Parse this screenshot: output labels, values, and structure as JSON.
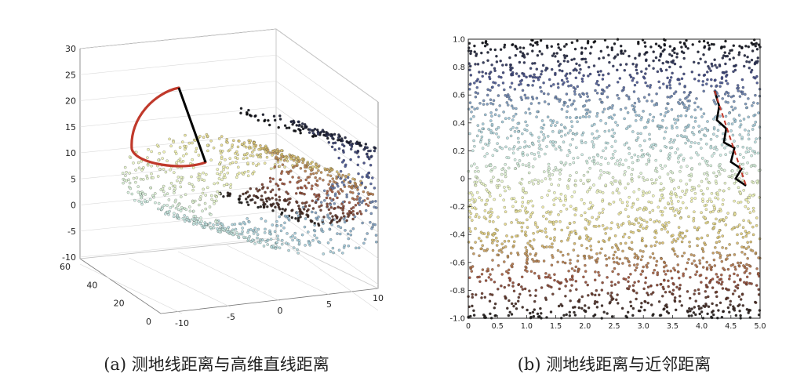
{
  "chart_data": [
    {
      "type": "scatter",
      "subtype": "3d-swiss-roll",
      "caption": "(a) 测地线距离与高维直线距离",
      "z_ticks": [
        "30",
        "25",
        "20",
        "15",
        "10",
        "5",
        "0",
        "-5",
        "-10"
      ],
      "y_ticks": [
        "60",
        "40",
        "20",
        "0"
      ],
      "x_ticks": [
        "-10",
        "-5",
        "0",
        "5",
        "10"
      ],
      "z_range": [
        -10,
        30
      ],
      "y_range": [
        0,
        60
      ],
      "x_range": [
        -10,
        10
      ],
      "colormap": [
        "#000000",
        "#3f4a8a",
        "#9cc6d8",
        "#d2f2e6",
        "#f4f7b3",
        "#dcc46f",
        "#9a4a33",
        "#111111"
      ],
      "curves": [
        {
          "name": "geodesic-distance",
          "color": "#c0392b"
        },
        {
          "name": "euclidean-distance",
          "color": "#000000"
        }
      ]
    },
    {
      "type": "scatter",
      "subtype": "2d-embedding",
      "caption": "(b) 测地线距离与近邻距离",
      "y_ticks": [
        "1.0",
        "0.8",
        "0.6",
        "0.4",
        "0.2",
        "0",
        "-0.2",
        "-0.4",
        "-0.6",
        "-0.8",
        "-1.0"
      ],
      "x_ticks": [
        "0",
        "0.5",
        "1.0",
        "1.5",
        "2.0",
        "2.5",
        "3.0",
        "3.5",
        "4.0",
        "4.5",
        "5.0"
      ],
      "xlim": [
        0,
        5
      ],
      "ylim": [
        -1,
        1
      ],
      "colormap": [
        "#000000",
        "#3f4a8a",
        "#9cc6d8",
        "#d2f2e6",
        "#f4f7b3",
        "#dcc46f",
        "#9a4a33",
        "#111111"
      ],
      "curves": [
        {
          "name": "neighbor-path",
          "color": "#000000",
          "points": [
            [
              4.22,
              0.63
            ],
            [
              4.3,
              0.52
            ],
            [
              4.26,
              0.42
            ],
            [
              4.42,
              0.36
            ],
            [
              4.38,
              0.26
            ],
            [
              4.56,
              0.22
            ],
            [
              4.5,
              0.12
            ],
            [
              4.68,
              0.07
            ],
            [
              4.58,
              0.0
            ],
            [
              4.76,
              -0.05
            ]
          ]
        },
        {
          "name": "geodesic-line",
          "color": "#c0392b",
          "points": [
            [
              4.22,
              0.63
            ],
            [
              4.76,
              -0.05
            ]
          ]
        }
      ]
    }
  ]
}
